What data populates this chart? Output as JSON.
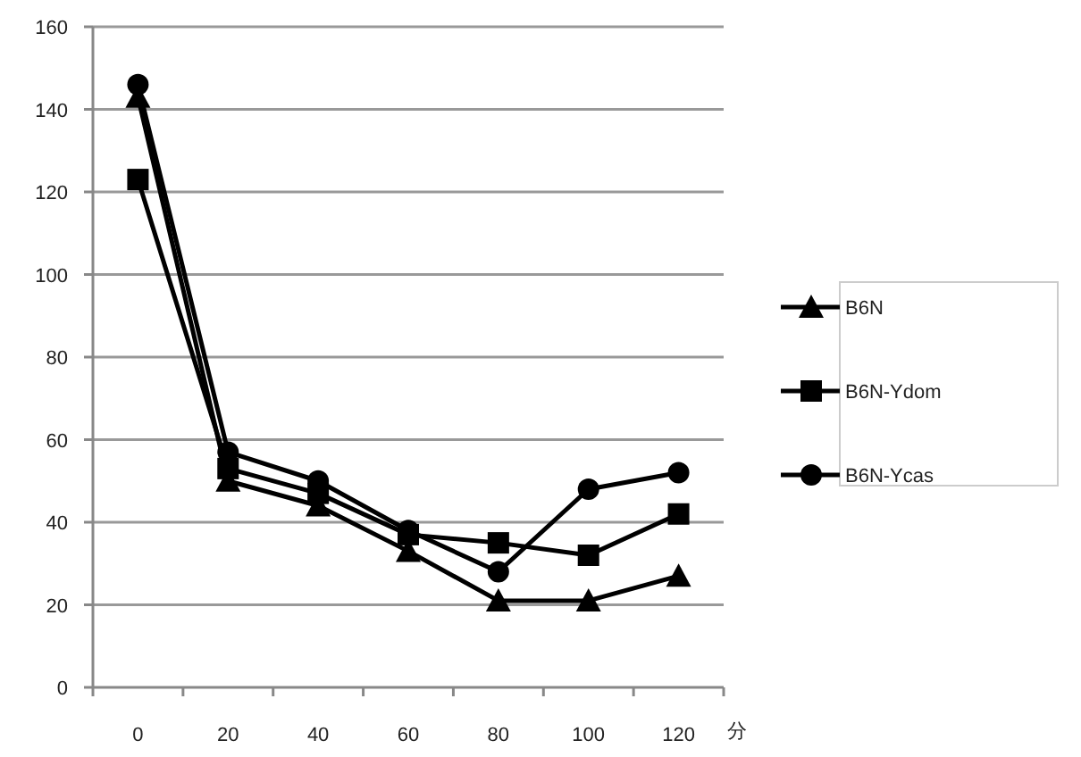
{
  "chart_data": {
    "type": "line",
    "xlabel": "分",
    "categories": [
      "0",
      "20",
      "40",
      "60",
      "80",
      "100",
      "120"
    ],
    "series": [
      {
        "name": "B6N",
        "color": "#000000",
        "marker": "triangle",
        "values": [
          143,
          50,
          44,
          33,
          21,
          21,
          27
        ]
      },
      {
        "name": "B6N-Ydom",
        "color": "#000000",
        "marker": "square",
        "values": [
          123,
          53,
          47,
          37,
          35,
          32,
          42
        ]
      },
      {
        "name": "B6N-Ycas",
        "color": "#000000",
        "marker": "circle",
        "values": [
          146,
          57,
          50,
          38,
          28,
          48,
          52
        ]
      }
    ],
    "ylim": [
      0,
      160
    ],
    "yticks": [
      0,
      20,
      40,
      60,
      80,
      100,
      120,
      140,
      160
    ],
    "grid": "y",
    "legend": "right",
    "line_style": "solid"
  }
}
